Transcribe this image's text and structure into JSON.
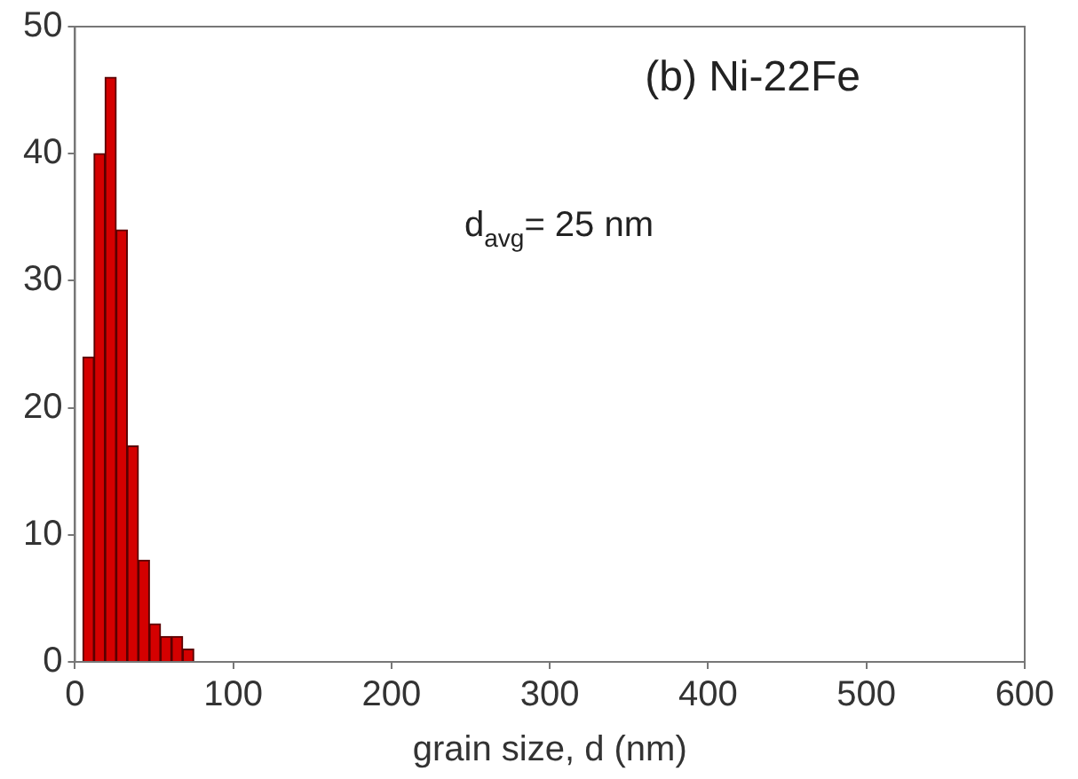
{
  "chart_data": {
    "type": "histogram",
    "xlabel": "grain size, d (nm)",
    "bins": [
      5,
      12,
      19,
      26,
      33,
      40,
      47,
      54,
      61,
      68,
      75
    ],
    "values": [
      24,
      40,
      46,
      34,
      17,
      8,
      3,
      2,
      2,
      1
    ],
    "color": "#d40000",
    "xlim": [
      0,
      600
    ],
    "xticks": [
      0,
      100,
      200,
      300,
      400,
      500,
      600
    ],
    "ylim": [
      0,
      50
    ],
    "yticks": [
      0,
      10,
      20,
      30,
      40,
      50
    ],
    "grid": false,
    "legend": false,
    "annotations": [
      "(b) Ni-22Fe",
      "d$_{avg}$= 25 nm"
    ]
  }
}
